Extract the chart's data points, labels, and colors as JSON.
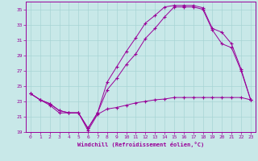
{
  "xlabel": "Windchill (Refroidissement éolien,°C)",
  "bg_color": "#c8e8e8",
  "line_color": "#990099",
  "xlim": [
    -0.5,
    23.5
  ],
  "ylim": [
    19,
    36
  ],
  "yticks": [
    19,
    21,
    23,
    25,
    27,
    29,
    31,
    33,
    35
  ],
  "xticks": [
    0,
    1,
    2,
    3,
    4,
    5,
    6,
    7,
    8,
    9,
    10,
    11,
    12,
    13,
    14,
    15,
    16,
    17,
    18,
    19,
    20,
    21,
    22,
    23
  ],
  "line1_x": [
    0,
    1,
    2,
    3,
    4,
    5,
    6,
    7,
    8,
    9,
    10,
    11,
    12,
    13,
    14,
    15,
    16,
    17,
    18,
    19,
    20,
    21,
    22,
    23
  ],
  "line1_y": [
    24.0,
    23.2,
    22.5,
    21.5,
    21.5,
    21.5,
    19.2,
    21.3,
    22.0,
    22.2,
    22.5,
    22.8,
    23.0,
    23.2,
    23.3,
    23.5,
    23.5,
    23.5,
    23.5,
    23.5,
    23.5,
    23.5,
    23.5,
    23.2
  ],
  "line2_x": [
    0,
    1,
    2,
    3,
    4,
    5,
    6,
    7,
    8,
    9,
    10,
    11,
    12,
    13,
    14,
    15,
    16,
    17,
    18,
    19,
    20,
    21,
    22,
    23
  ],
  "line2_y": [
    24.0,
    23.2,
    22.7,
    21.8,
    21.5,
    21.5,
    19.5,
    21.5,
    24.5,
    26.0,
    27.8,
    29.2,
    31.2,
    32.5,
    34.0,
    35.3,
    35.3,
    35.3,
    35.0,
    32.3,
    30.5,
    30.0,
    27.0,
    23.2
  ],
  "line3_x": [
    0,
    1,
    2,
    3,
    4,
    5,
    6,
    7,
    8,
    9,
    10,
    11,
    12,
    13,
    14,
    15,
    16,
    17,
    18,
    19,
    20,
    21,
    22,
    23
  ],
  "line3_y": [
    24.0,
    23.2,
    22.7,
    21.8,
    21.5,
    21.5,
    19.5,
    21.5,
    25.5,
    27.5,
    29.5,
    31.3,
    33.2,
    34.2,
    35.3,
    35.5,
    35.5,
    35.5,
    35.2,
    32.5,
    32.0,
    30.5,
    27.2,
    23.2
  ],
  "tick_fontsize": 4.5,
  "xlabel_fontsize": 5.0,
  "grid_color": "#a8d4d4",
  "spine_color": "#990099"
}
